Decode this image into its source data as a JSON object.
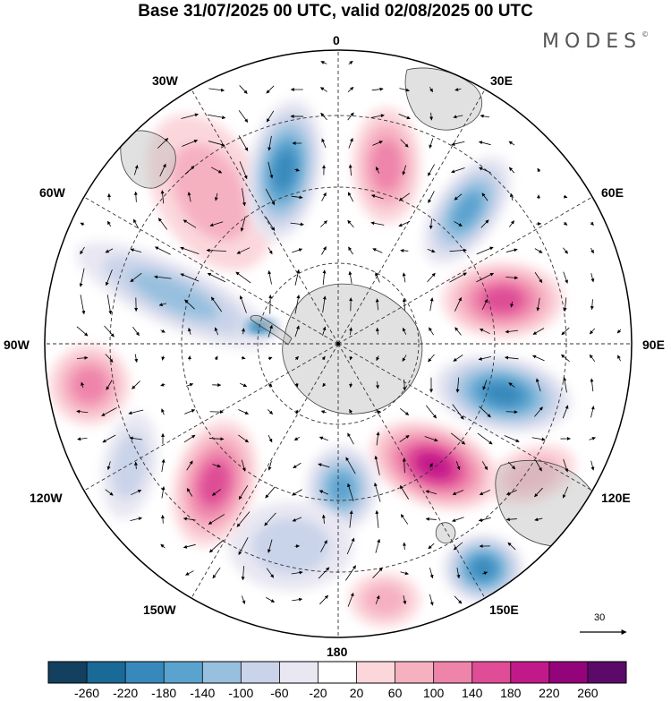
{
  "title": "Base 31/07/2025 00 UTC, valid 02/08/2025 00 UTC",
  "brand": "MODES",
  "brand_mark": "©",
  "lon_labels": {
    "n0": "0",
    "e30": "30E",
    "e60": "60E",
    "e90": "90E",
    "e120": "120E",
    "e150": "150E",
    "s180": "180",
    "w150": "150W",
    "w120": "120W",
    "w90": "90W",
    "w60": "60W",
    "w30": "30W"
  },
  "reference_vector": {
    "label": "30",
    "icon": "arrow-right-icon"
  },
  "colorbar": {
    "ticks": [
      "-260",
      "-220",
      "-180",
      "-140",
      "-100",
      "-60",
      "-20",
      "20",
      "60",
      "100",
      "140",
      "180",
      "220",
      "260"
    ],
    "colors": [
      "#14405f",
      "#1a6a97",
      "#3789bc",
      "#5ba3cf",
      "#97c0de",
      "#c9d3e9",
      "#e8e7f2",
      "#ffffff",
      "#fbd7dc",
      "#f6b1c1",
      "#ee84aa",
      "#de4d96",
      "#c2198a",
      "#93037a",
      "#5b0a6a"
    ]
  },
  "colors": {
    "grid": "#333333",
    "coast": "#444444",
    "land": "#bdbdbd"
  }
}
